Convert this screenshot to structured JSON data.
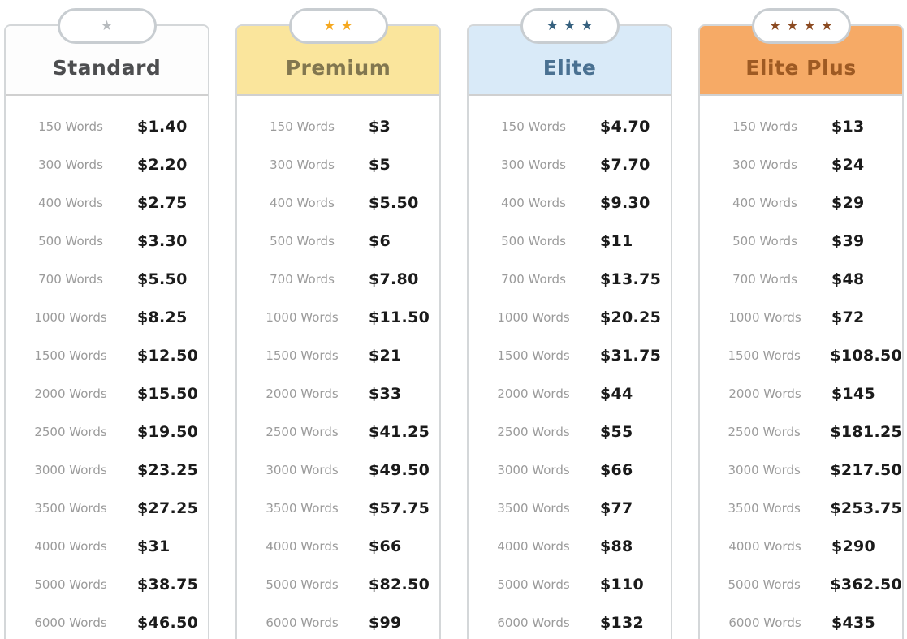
{
  "pricing_table": {
    "word_counts": [
      "150 Words",
      "300 Words",
      "400 Words",
      "500 Words",
      "700 Words",
      "1000 Words",
      "1500 Words",
      "2000 Words",
      "2500 Words",
      "3000 Words",
      "3500 Words",
      "4000 Words",
      "5000 Words",
      "6000 Words"
    ],
    "plans": [
      {
        "name": "Standard",
        "stars": 1,
        "star_icon": "star-icon",
        "star_color": "#b7bbbe",
        "header_bg": "#fdfdfd",
        "title_color": "#4d4e50",
        "prices": [
          "$1.40",
          "$2.20",
          "$2.75",
          "$3.30",
          "$5.50",
          "$8.25",
          "$12.50",
          "$15.50",
          "$19.50",
          "$23.25",
          "$27.25",
          "$31",
          "$38.75",
          "$46.50"
        ]
      },
      {
        "name": "Premium",
        "stars": 2,
        "star_icon": "star-icon",
        "star_color": "#f5a81f",
        "header_bg": "#fae59c",
        "title_color": "#82774f",
        "prices": [
          "$3",
          "$5",
          "$5.50",
          "$6",
          "$7.80",
          "$11.50",
          "$21",
          "$33",
          "$41.25",
          "$49.50",
          "$57.75",
          "$66",
          "$82.50",
          "$99"
        ]
      },
      {
        "name": "Elite",
        "stars": 3,
        "star_icon": "star-icon",
        "star_color": "#35607e",
        "header_bg": "#d9eaf8",
        "title_color": "#4a7192",
        "prices": [
          "$4.70",
          "$7.70",
          "$9.30",
          "$11",
          "$13.75",
          "$20.25",
          "$31.75",
          "$44",
          "$55",
          "$66",
          "$77",
          "$88",
          "$110",
          "$132"
        ]
      },
      {
        "name": "Elite Plus",
        "stars": 4,
        "star_icon": "star-icon",
        "star_color": "#8b4a21",
        "header_bg": "#f6aa66",
        "title_color": "#9e5a23",
        "prices": [
          "$13",
          "$24",
          "$29",
          "$39",
          "$48",
          "$72",
          "$108.50",
          "$145",
          "$181.25",
          "$217.50",
          "$253.75",
          "$290",
          "$362.50",
          "$435"
        ]
      }
    ]
  },
  "glyphs": {
    "star": "★"
  }
}
